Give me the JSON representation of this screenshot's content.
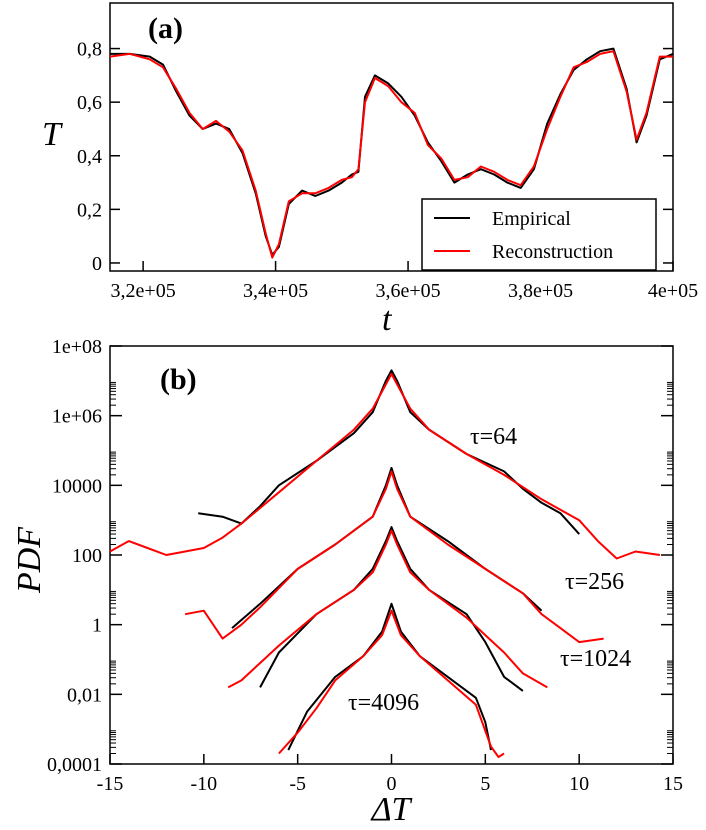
{
  "chart_data": [
    {
      "type": "line",
      "panel_label": "(a)",
      "xlabel": "t",
      "ylabel": "T",
      "xlim": [
        315000,
        400000
      ],
      "ylim": [
        -0.03,
        0.97
      ],
      "x_ticks": [
        320000,
        340000,
        360000,
        380000,
        400000
      ],
      "x_tick_labels": [
        "3,2e+05",
        "3,4e+05",
        "3,6e+05",
        "3,8e+05",
        "4e+05"
      ],
      "y_ticks": [
        0,
        0.2,
        0.4,
        0.6,
        0.8
      ],
      "y_tick_labels": [
        "0",
        "0,2",
        "0,4",
        "0,6",
        "0,8"
      ],
      "legend_position": "bottom-right",
      "series": [
        {
          "name": "Empirical",
          "color": "#000000",
          "x": [
            315000,
            318000,
            321000,
            323000,
            325000,
            327000,
            329000,
            331000,
            333000,
            335000,
            337000,
            338500,
            339500,
            340500,
            342000,
            344000,
            346000,
            348000,
            350000,
            351500,
            352500,
            353500,
            355000,
            357000,
            359000,
            361000,
            363000,
            365000,
            367000,
            369000,
            371000,
            373000,
            375000,
            377000,
            379000,
            381000,
            383000,
            385000,
            387000,
            389000,
            391000,
            393000,
            394500,
            396000,
            398000,
            400000
          ],
          "y": [
            0.78,
            0.78,
            0.77,
            0.74,
            0.64,
            0.55,
            0.5,
            0.52,
            0.5,
            0.41,
            0.26,
            0.1,
            0.03,
            0.06,
            0.22,
            0.27,
            0.25,
            0.27,
            0.3,
            0.33,
            0.34,
            0.62,
            0.7,
            0.67,
            0.62,
            0.55,
            0.45,
            0.38,
            0.3,
            0.33,
            0.35,
            0.33,
            0.3,
            0.28,
            0.35,
            0.52,
            0.63,
            0.72,
            0.76,
            0.79,
            0.8,
            0.65,
            0.45,
            0.55,
            0.76,
            0.78
          ]
        },
        {
          "name": "Reconstruction",
          "color": "#ff0000",
          "x": [
            315000,
            318000,
            321000,
            323000,
            325000,
            327000,
            329000,
            331000,
            333000,
            335000,
            337000,
            338500,
            339500,
            340500,
            342000,
            344000,
            346000,
            348000,
            350000,
            351500,
            352500,
            353500,
            355000,
            357000,
            359000,
            361000,
            363000,
            365000,
            367000,
            369000,
            371000,
            373000,
            375000,
            377000,
            379000,
            381000,
            383000,
            385000,
            387000,
            389000,
            391000,
            393000,
            394500,
            396000,
            398000,
            400000
          ],
          "y": [
            0.77,
            0.78,
            0.76,
            0.73,
            0.65,
            0.56,
            0.5,
            0.53,
            0.49,
            0.42,
            0.27,
            0.11,
            0.02,
            0.07,
            0.23,
            0.26,
            0.26,
            0.28,
            0.31,
            0.32,
            0.35,
            0.6,
            0.69,
            0.66,
            0.6,
            0.56,
            0.44,
            0.39,
            0.31,
            0.32,
            0.36,
            0.34,
            0.31,
            0.29,
            0.36,
            0.5,
            0.62,
            0.73,
            0.75,
            0.78,
            0.79,
            0.64,
            0.46,
            0.56,
            0.77,
            0.77
          ]
        }
      ]
    },
    {
      "type": "line",
      "panel_label": "(b)",
      "xlabel": "ΔT",
      "ylabel": "PDF",
      "y_scale": "log",
      "xlim": [
        -15,
        15
      ],
      "ylim_log10": [
        -4,
        8
      ],
      "x_ticks": [
        -15,
        -10,
        -5,
        0,
        5,
        10,
        15
      ],
      "x_tick_labels": [
        "-15",
        "-10",
        "-5",
        "0",
        "5",
        "10",
        "15"
      ],
      "y_ticks_log10": [
        -4,
        -2,
        0,
        2,
        4,
        6,
        8
      ],
      "y_tick_labels": [
        "0,0001",
        "0,01",
        "1",
        "100",
        "10000",
        "1e+06",
        "1e+08"
      ],
      "annotations": [
        "τ=64",
        "τ=256",
        "τ=1024",
        "τ=4096"
      ],
      "series": [
        {
          "name": "Empirical τ=64",
          "color": "#000000",
          "x": [
            -10.3,
            -9,
            -8,
            -7,
            -6,
            -4,
            -2,
            -1,
            -0.3,
            0,
            0.3,
            1,
            2,
            4,
            6,
            7,
            8,
            9,
            10
          ],
          "log10_y": [
            3.2,
            3.1,
            2.9,
            3.4,
            4.0,
            4.7,
            5.5,
            6.1,
            7.0,
            7.3,
            7.0,
            6.1,
            5.6,
            4.9,
            4.4,
            3.9,
            3.5,
            3.2,
            2.6
          ]
        },
        {
          "name": "Reconstruction τ=64",
          "color": "#ff0000",
          "x": [
            -15,
            -14,
            -13,
            -12,
            -11,
            -10,
            -9,
            -8,
            -6,
            -4,
            -2,
            -1,
            -0.3,
            0,
            0.3,
            1,
            2,
            4,
            6,
            8,
            10,
            11,
            12,
            13,
            14.3
          ],
          "log10_y": [
            2.1,
            2.4,
            2.2,
            2.0,
            2.1,
            2.2,
            2.5,
            2.9,
            3.8,
            4.7,
            5.6,
            6.2,
            6.9,
            7.2,
            6.9,
            6.2,
            5.6,
            4.9,
            4.3,
            3.6,
            3.0,
            2.4,
            1.9,
            2.1,
            2.0
          ]
        },
        {
          "name": "Empirical τ=256",
          "color": "#000000",
          "x": [
            -8.5,
            -7,
            -5,
            -3,
            -1,
            -0.3,
            0,
            0.3,
            1,
            3,
            5,
            7,
            8
          ],
          "log10_y": [
            -0.1,
            0.6,
            1.6,
            2.3,
            3.1,
            4.0,
            4.5,
            4.0,
            3.1,
            2.4,
            1.6,
            0.9,
            0.4
          ]
        },
        {
          "name": "Reconstruction τ=256",
          "color": "#ff0000",
          "x": [
            -11,
            -10,
            -9,
            -8,
            -7,
            -5,
            -3,
            -1,
            -0.3,
            0,
            0.3,
            1,
            3,
            5,
            7,
            8,
            9,
            10,
            11.3
          ],
          "log10_y": [
            0.3,
            0.4,
            -0.4,
            0.0,
            0.5,
            1.6,
            2.3,
            3.1,
            3.9,
            4.4,
            3.9,
            3.1,
            2.3,
            1.6,
            0.9,
            0.3,
            -0.1,
            -0.5,
            -0.4
          ]
        },
        {
          "name": "Empirical τ=1024",
          "color": "#000000",
          "x": [
            -7,
            -6,
            -4,
            -2,
            -1,
            -0.3,
            0,
            0.3,
            1,
            2,
            4,
            5,
            6,
            7
          ],
          "log10_y": [
            -1.8,
            -0.8,
            0.3,
            1.0,
            1.6,
            2.4,
            2.8,
            2.4,
            1.6,
            1.0,
            0.3,
            -0.5,
            -1.5,
            -1.9
          ]
        },
        {
          "name": "Reconstruction τ=1024",
          "color": "#ff0000",
          "x": [
            -8.7,
            -8,
            -7,
            -6,
            -4,
            -2,
            -1,
            -0.3,
            0,
            0.3,
            1,
            2,
            4,
            5,
            6,
            7,
            8.3
          ],
          "log10_y": [
            -1.8,
            -1.6,
            -1.1,
            -0.6,
            0.3,
            1.0,
            1.5,
            2.3,
            2.7,
            2.3,
            1.5,
            1.0,
            0.2,
            -0.3,
            -0.8,
            -1.4,
            -1.8
          ]
        },
        {
          "name": "Empirical τ=4096",
          "color": "#000000",
          "x": [
            -5.5,
            -4.5,
            -3,
            -1.5,
            -0.5,
            0,
            0.5,
            1.5,
            3,
            4.5,
            5,
            5.3
          ],
          "log10_y": [
            -3.6,
            -2.5,
            -1.5,
            -0.9,
            -0.2,
            0.6,
            -0.2,
            -0.9,
            -1.5,
            -2.1,
            -2.8,
            -3.6
          ]
        },
        {
          "name": "Reconstruction τ=4096",
          "color": "#ff0000",
          "x": [
            -6,
            -5,
            -4,
            -3,
            -1.5,
            -0.5,
            0,
            0.5,
            1.5,
            3,
            4.5,
            5.3,
            5.7,
            6
          ],
          "log10_y": [
            -3.7,
            -3.1,
            -2.4,
            -1.6,
            -0.9,
            -0.3,
            0.4,
            -0.3,
            -0.9,
            -1.6,
            -2.3,
            -3.5,
            -3.8,
            -3.7
          ]
        }
      ]
    }
  ]
}
